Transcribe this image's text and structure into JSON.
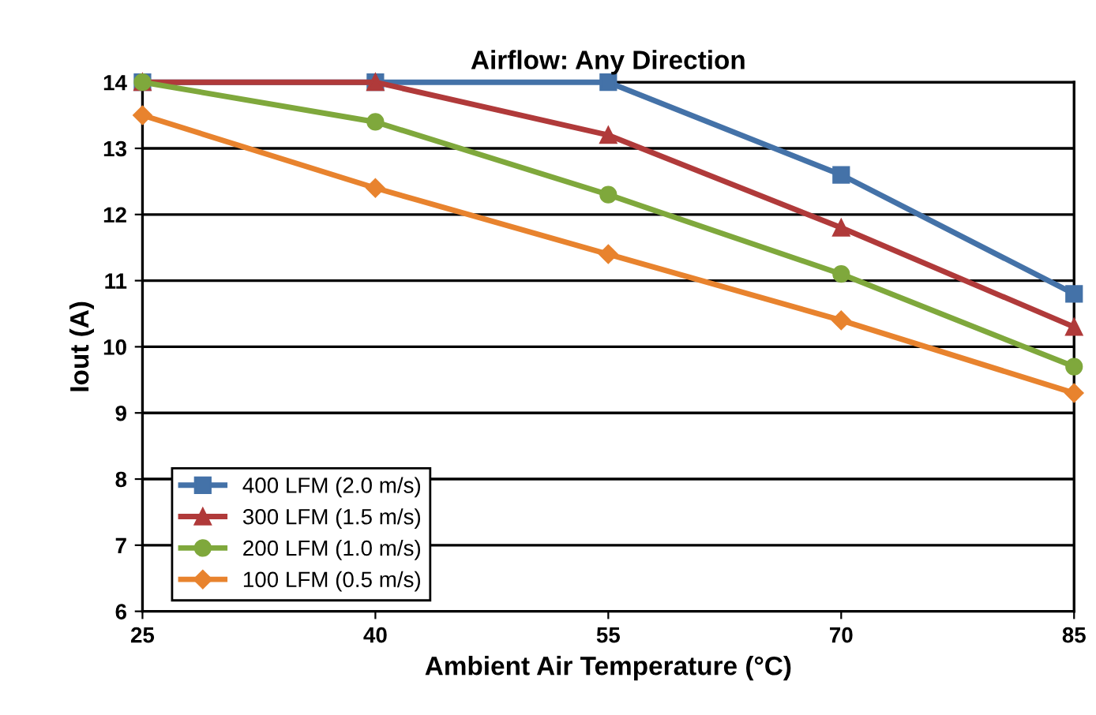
{
  "chart_data": {
    "type": "line",
    "title": "Airflow: Any Direction",
    "xlabel": "Ambient Air Temperature (°C)",
    "ylabel": "Iout (A)",
    "x": [
      25,
      40,
      55,
      70,
      85
    ],
    "series": [
      {
        "name": "400 LFM (2.0 m/s)",
        "color": "#4472a8",
        "marker": "square",
        "values": [
          14,
          14,
          14,
          12.6,
          10.8
        ]
      },
      {
        "name": "300 LFM (1.5 m/s)",
        "color": "#b03a3a",
        "marker": "triangle",
        "values": [
          14,
          14,
          13.2,
          11.8,
          10.3
        ]
      },
      {
        "name": "200 LFM (1.0 m/s)",
        "color": "#7fa83c",
        "marker": "circle",
        "values": [
          14,
          13.4,
          12.3,
          11.1,
          9.7
        ]
      },
      {
        "name": "100 LFM (0.5 m/s)",
        "color": "#e8832e",
        "marker": "diamond",
        "values": [
          13.5,
          12.4,
          11.4,
          10.4,
          9.3
        ]
      }
    ],
    "xlim": [
      25,
      85
    ],
    "xticks": [
      25,
      40,
      55,
      70,
      85
    ],
    "ylim": [
      6,
      14
    ],
    "yticks": [
      6,
      7,
      8,
      9,
      10,
      11,
      12,
      13,
      14
    ],
    "grid": "y",
    "legend": "bottom left",
    "line_style": "solid"
  }
}
